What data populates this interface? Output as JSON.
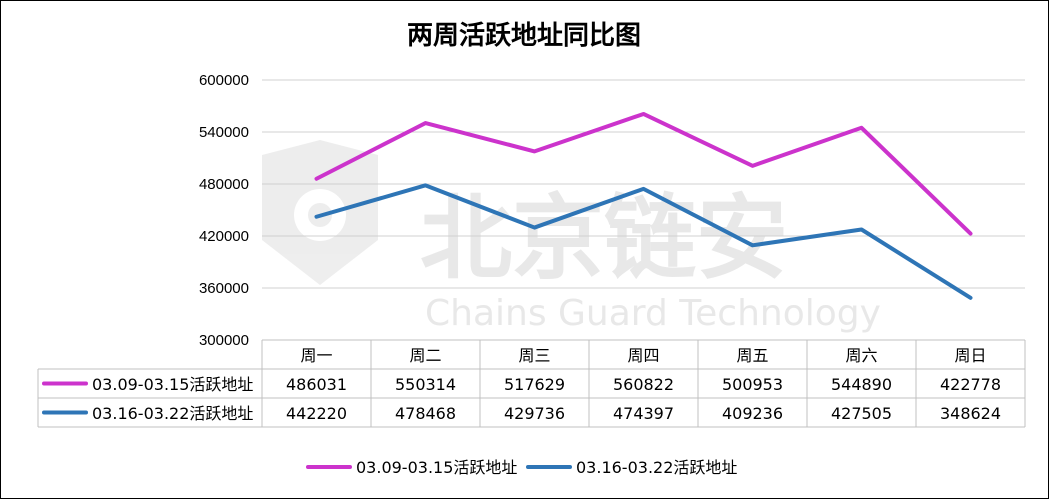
{
  "chart_data": {
    "type": "line",
    "title": "两周活跃地址同比图",
    "categories": [
      "周一",
      "周二",
      "周三",
      "周四",
      "周五",
      "周六",
      "周日"
    ],
    "ylim": [
      300000,
      600000
    ],
    "yticks": [
      "600000",
      "540000",
      "480000",
      "420000",
      "360000",
      "300000"
    ],
    "grid": true,
    "legend_position": "bottom",
    "series": [
      {
        "name": "03.09-03.15活跃地址",
        "color": "#CC33CC",
        "values": [
          486031,
          550314,
          517629,
          560822,
          500953,
          544890,
          422778
        ]
      },
      {
        "name": "03.16-03.22活跃地址",
        "color": "#2E75B6",
        "values": [
          442220,
          478468,
          429736,
          474397,
          409236,
          427505,
          348624
        ]
      }
    ]
  },
  "watermark": {
    "cn": "北京链安",
    "en": "Chains Guard Technology",
    "icon": "shield-logo-icon"
  }
}
